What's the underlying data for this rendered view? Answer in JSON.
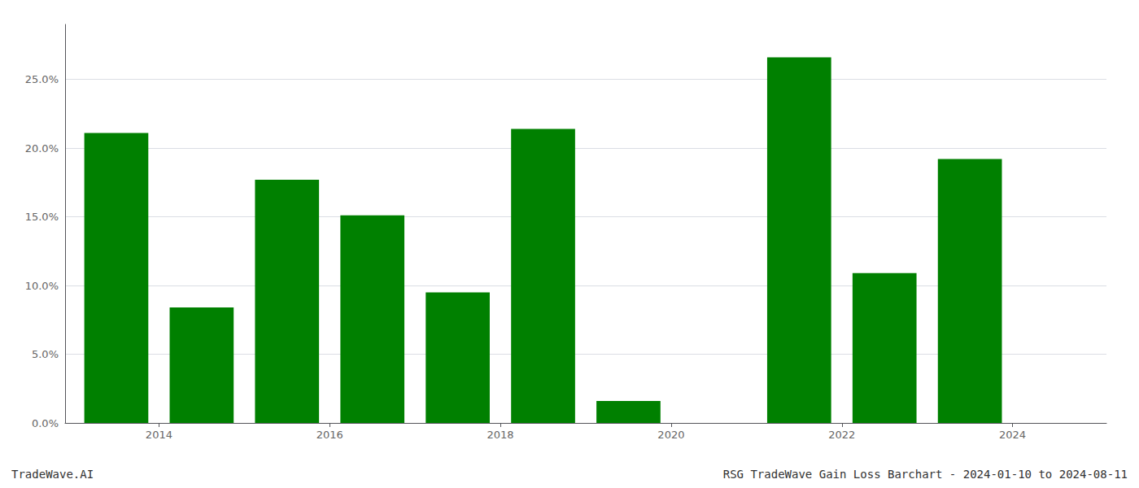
{
  "chart_data": {
    "type": "bar",
    "title": "RSG TradeWave Gain Loss Barchart - 2024-01-10 to 2024-08-11",
    "annotations": [
      "TradeWave.AI"
    ],
    "x": [
      2013,
      2014,
      2015,
      2016,
      2017,
      2018,
      2019,
      2021,
      2022,
      2023
    ],
    "values": [
      0.211,
      0.084,
      0.177,
      0.151,
      0.095,
      0.214,
      0.016,
      0.266,
      0.109,
      0.192
    ],
    "color": "#008000",
    "xlim": [
      2012.4,
      2024.6
    ],
    "xticks": [
      {
        "value": 2013.5,
        "label": "2014"
      },
      {
        "value": 2015.5,
        "label": "2016"
      },
      {
        "value": 2017.5,
        "label": "2018"
      },
      {
        "value": 2019.5,
        "label": "2020"
      },
      {
        "value": 2021.5,
        "label": "2022"
      },
      {
        "value": 2023.5,
        "label": "2024"
      }
    ],
    "ylim": [
      0,
      0.29
    ],
    "yticks": [
      {
        "value": 0.0,
        "label": "0.0%"
      },
      {
        "value": 0.05,
        "label": "5.0%"
      },
      {
        "value": 0.1,
        "label": "10.0%"
      },
      {
        "value": 0.15,
        "label": "15.0%"
      },
      {
        "value": 0.2,
        "label": "20.0%"
      },
      {
        "value": 0.25,
        "label": "25.0%"
      }
    ],
    "grid": true
  }
}
